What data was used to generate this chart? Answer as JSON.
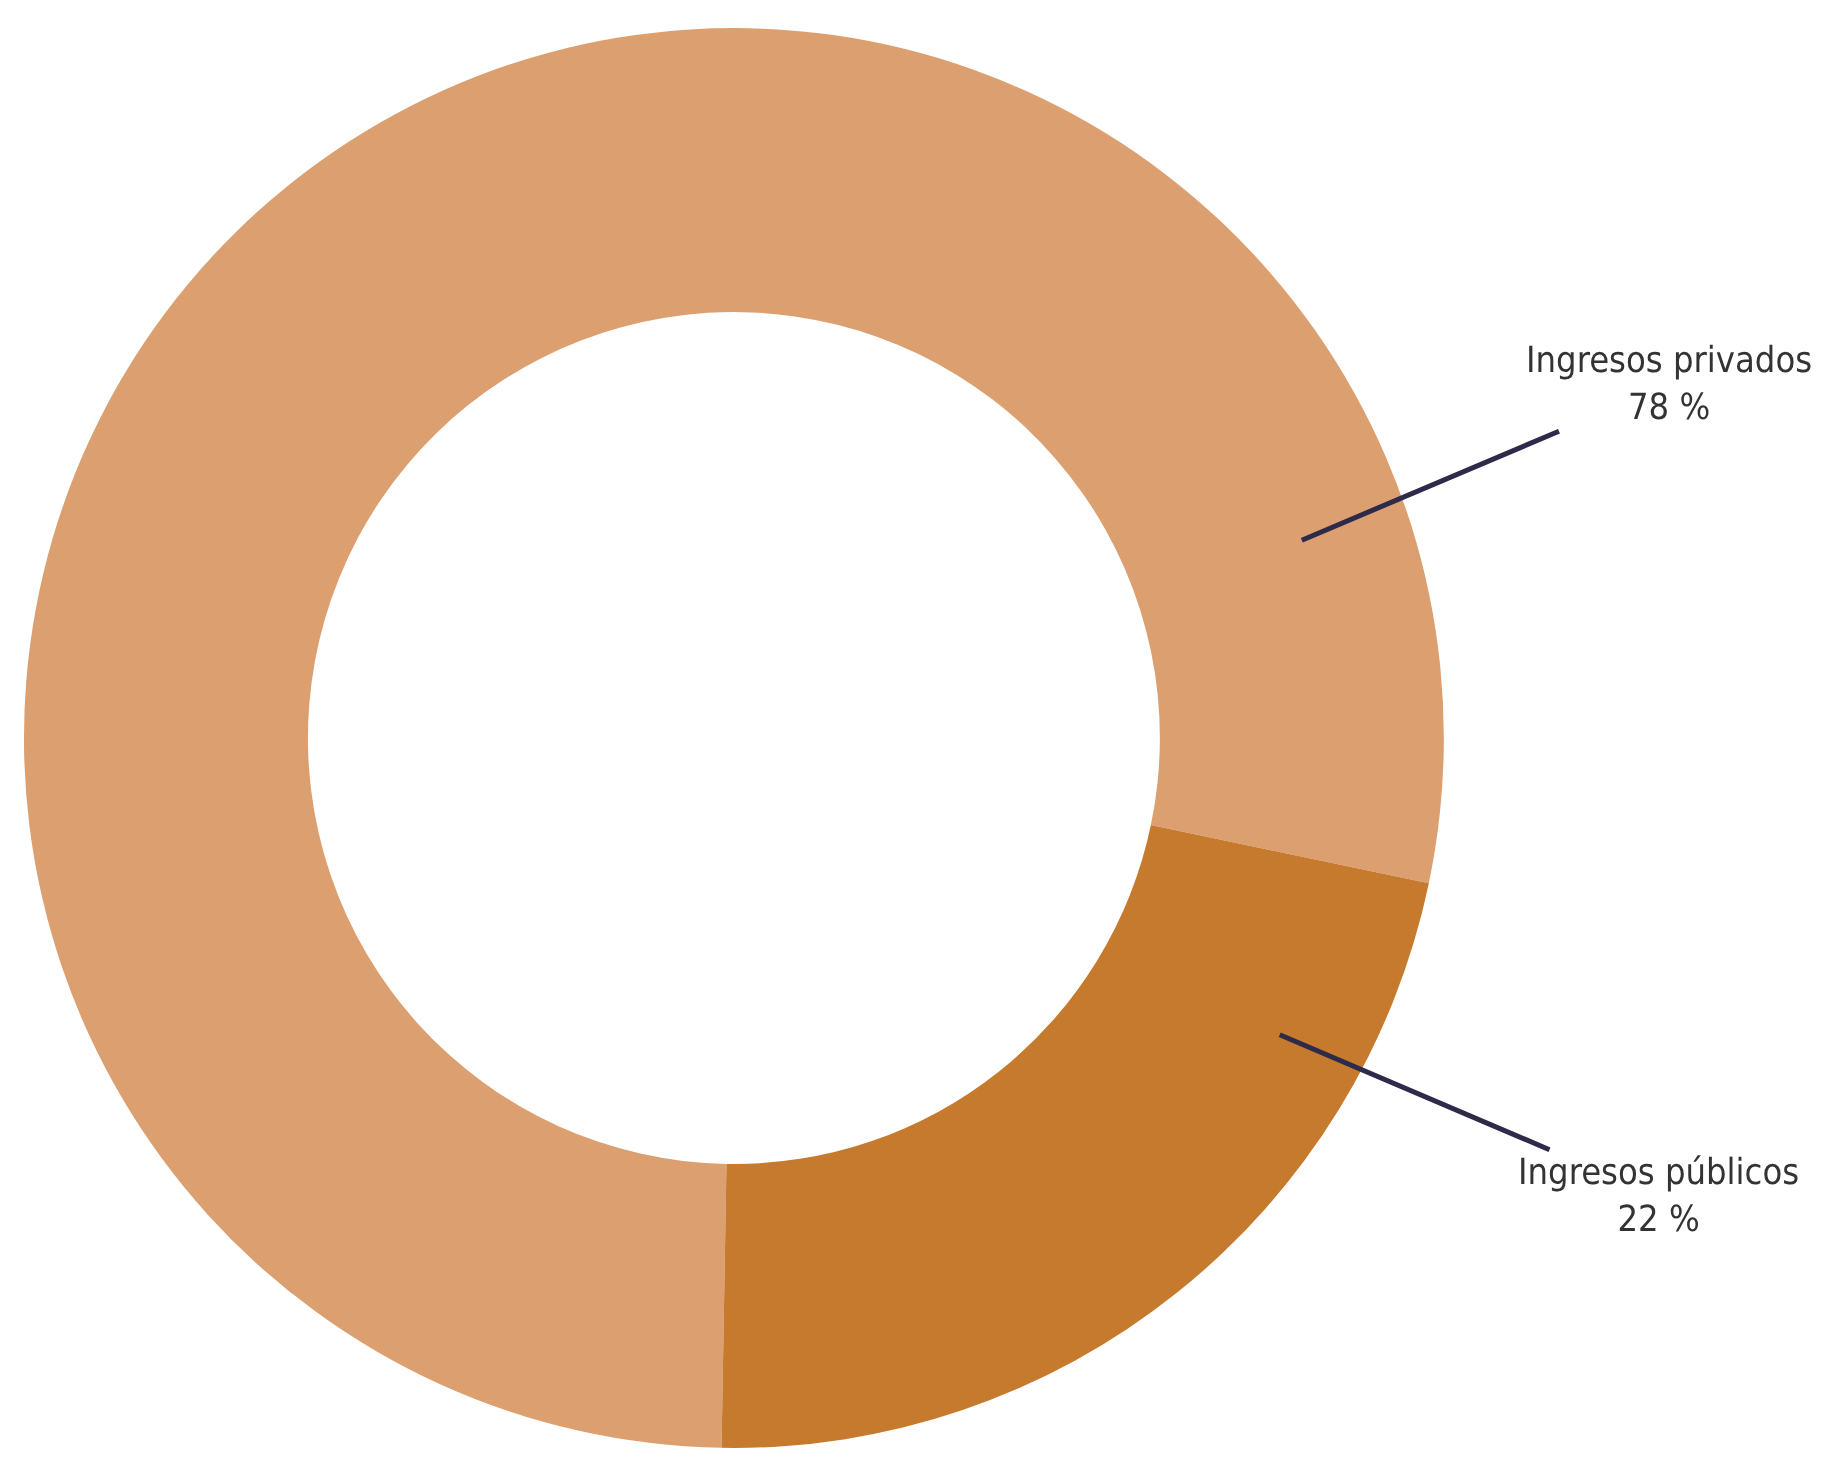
{
  "chart_data": {
    "type": "donut",
    "categories": [
      "Ingresos privados",
      "Ingresos públicos"
    ],
    "values": [
      78,
      22
    ],
    "value_labels": [
      "78 %",
      "22 %"
    ],
    "colors": [
      "#dc9f70",
      "#c67a2e"
    ],
    "legend": false
  }
}
